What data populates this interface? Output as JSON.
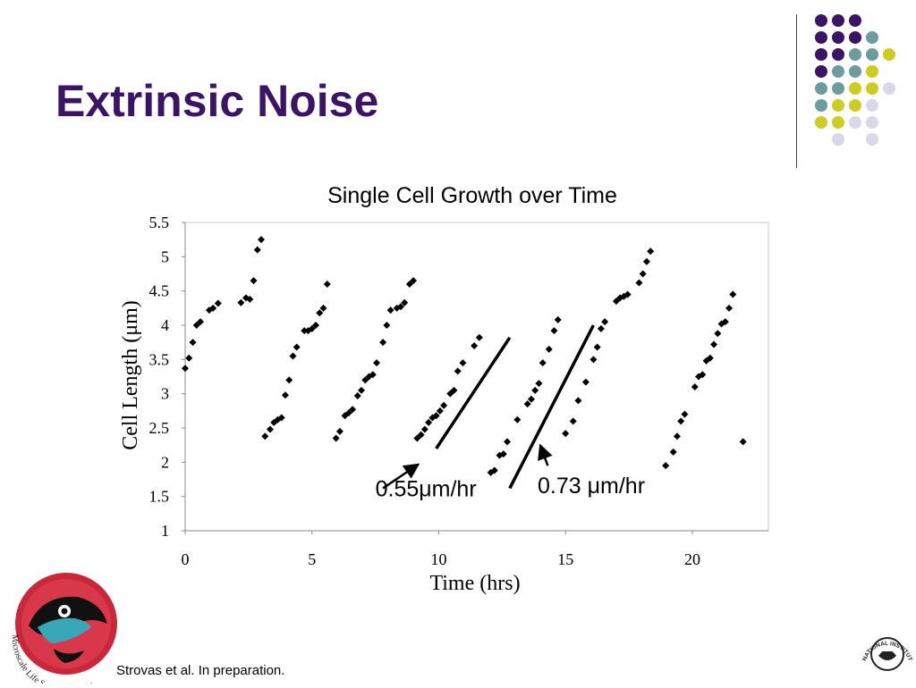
{
  "slide": {
    "title": "Extrinsic Noise",
    "citation": "Strovas et al. In preparation.",
    "logo_left_text": "Microscale Life Sciences Center",
    "logo_right_text": "NATIONAL INSTITUTES OF HEALTH"
  },
  "colors": {
    "title": "#3b1466",
    "dot_purple": "#3b1466",
    "dot_teal": "#6d9c9c",
    "dot_yellow": "#cccc22",
    "dot_lavender": "#d8d8e8"
  },
  "chart_data": {
    "type": "scatter",
    "title": "Single Cell Growth over Time",
    "xlabel": "Time (hrs)",
    "ylabel": "Cell Length (μm)",
    "xlim": [
      0,
      23
    ],
    "ylim": [
      1,
      5.5
    ],
    "xticks": [
      0,
      5,
      10,
      15,
      20
    ],
    "yticks": [
      1,
      1.5,
      2,
      2.5,
      3,
      3.5,
      4,
      4.5,
      5,
      5.5
    ],
    "grid": false,
    "legend": "none",
    "series": [
      {
        "points": [
          [
            0.0,
            3.37
          ],
          [
            0.15,
            3.52
          ],
          [
            0.3,
            3.75
          ],
          [
            0.45,
            4.0
          ],
          [
            0.6,
            4.05
          ],
          [
            0.95,
            4.22
          ],
          [
            1.1,
            4.25
          ],
          [
            1.3,
            4.32
          ],
          [
            2.2,
            4.33
          ],
          [
            2.4,
            4.4
          ],
          [
            2.55,
            4.38
          ],
          [
            2.7,
            4.65
          ],
          [
            2.85,
            5.1
          ],
          [
            3.0,
            5.25
          ],
          [
            3.15,
            2.38
          ],
          [
            3.35,
            2.48
          ],
          [
            3.5,
            2.58
          ],
          [
            3.65,
            2.62
          ],
          [
            3.8,
            2.65
          ],
          [
            3.95,
            2.98
          ],
          [
            4.1,
            3.2
          ],
          [
            4.25,
            3.55
          ],
          [
            4.4,
            3.68
          ],
          [
            4.7,
            3.92
          ],
          [
            4.85,
            3.92
          ],
          [
            5.0,
            3.95
          ],
          [
            5.15,
            4.0
          ],
          [
            5.3,
            4.18
          ],
          [
            5.45,
            4.25
          ],
          [
            5.6,
            4.6
          ],
          [
            5.95,
            2.35
          ],
          [
            6.1,
            2.45
          ],
          [
            6.3,
            2.68
          ],
          [
            6.45,
            2.72
          ],
          [
            6.6,
            2.77
          ],
          [
            6.8,
            2.97
          ],
          [
            6.95,
            3.05
          ],
          [
            7.1,
            3.2
          ],
          [
            7.25,
            3.25
          ],
          [
            7.4,
            3.28
          ],
          [
            7.55,
            3.45
          ],
          [
            7.8,
            3.75
          ],
          [
            7.95,
            4.0
          ],
          [
            8.1,
            4.22
          ],
          [
            8.35,
            4.25
          ],
          [
            8.5,
            4.27
          ],
          [
            8.65,
            4.33
          ],
          [
            8.85,
            4.6
          ],
          [
            9.0,
            4.65
          ],
          [
            9.15,
            2.35
          ],
          [
            9.3,
            2.4
          ],
          [
            9.45,
            2.48
          ],
          [
            9.6,
            2.58
          ],
          [
            9.75,
            2.65
          ],
          [
            9.9,
            2.68
          ],
          [
            10.05,
            2.75
          ],
          [
            10.2,
            2.83
          ],
          [
            10.45,
            3.0
          ],
          [
            10.6,
            3.05
          ],
          [
            10.75,
            3.33
          ],
          [
            10.95,
            3.45
          ],
          [
            11.4,
            3.7
          ],
          [
            11.6,
            3.82
          ],
          [
            12.05,
            1.85
          ],
          [
            12.2,
            1.88
          ],
          [
            12.4,
            2.1
          ],
          [
            12.55,
            2.12
          ],
          [
            12.7,
            2.3
          ],
          [
            13.1,
            2.62
          ],
          [
            13.5,
            2.85
          ],
          [
            13.65,
            2.92
          ],
          [
            13.8,
            3.05
          ],
          [
            13.95,
            3.15
          ],
          [
            14.1,
            3.45
          ],
          [
            14.35,
            3.65
          ],
          [
            14.55,
            3.92
          ],
          [
            14.7,
            4.08
          ],
          [
            15.0,
            2.42
          ],
          [
            15.3,
            2.6
          ],
          [
            15.5,
            2.9
          ],
          [
            15.8,
            3.17
          ],
          [
            16.1,
            3.5
          ],
          [
            16.25,
            3.68
          ],
          [
            16.4,
            3.95
          ],
          [
            16.55,
            4.05
          ],
          [
            17.0,
            4.35
          ],
          [
            17.15,
            4.4
          ],
          [
            17.3,
            4.42
          ],
          [
            17.45,
            4.45
          ],
          [
            17.9,
            4.62
          ],
          [
            18.05,
            4.75
          ],
          [
            18.2,
            4.93
          ],
          [
            18.35,
            5.08
          ],
          [
            18.95,
            1.95
          ],
          [
            19.25,
            2.15
          ],
          [
            19.4,
            2.38
          ],
          [
            19.55,
            2.6
          ],
          [
            19.7,
            2.7
          ],
          [
            20.1,
            3.1
          ],
          [
            20.25,
            3.25
          ],
          [
            20.4,
            3.28
          ],
          [
            20.55,
            3.48
          ],
          [
            20.7,
            3.52
          ],
          [
            20.85,
            3.72
          ],
          [
            21.0,
            3.88
          ],
          [
            21.15,
            4.02
          ],
          [
            21.3,
            4.05
          ],
          [
            21.45,
            4.25
          ],
          [
            21.6,
            4.45
          ],
          [
            22.0,
            2.3
          ]
        ]
      }
    ],
    "fit_lines": [
      {
        "x": [
          9.9,
          12.8
        ],
        "y": [
          2.2,
          3.82
        ]
      },
      {
        "x": [
          12.8,
          16.1
        ],
        "y": [
          1.62,
          4.0
        ]
      }
    ],
    "annotations": [
      {
        "text": "0.55μm/hr",
        "x": 7.5,
        "y": 1.5,
        "arrow_from": [
          7.8,
          1.62
        ],
        "arrow_to": [
          9.2,
          1.97
        ]
      },
      {
        "text": "0.73 μm/hr",
        "x": 13.9,
        "y": 1.55,
        "arrow_from": [
          14.3,
          1.95
        ],
        "arrow_to": [
          14.0,
          2.25
        ]
      }
    ]
  }
}
